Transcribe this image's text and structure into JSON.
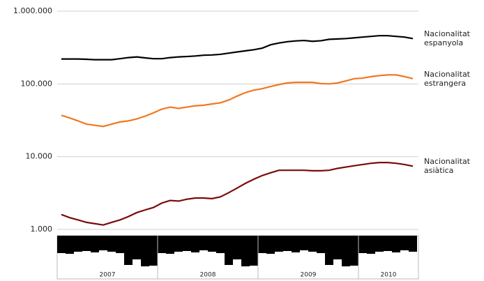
{
  "chart_data": {
    "type": "line",
    "log_scale": true,
    "grid": true,
    "categories": [
      null,
      null,
      null,
      null,
      null,
      null,
      null,
      null,
      null,
      null,
      null,
      null,
      null,
      null,
      null,
      null,
      null,
      null,
      null,
      null,
      null,
      null,
      null,
      null,
      null,
      null,
      null,
      null,
      null,
      null,
      null,
      null,
      null,
      null,
      null,
      null,
      null,
      null,
      null,
      null,
      null,
      null,
      null
    ],
    "ylim": [
      1000,
      1000000
    ],
    "yticks": [
      {
        "value": 1000,
        "label": "1.000"
      },
      {
        "value": 10000,
        "label": "10.000"
      },
      {
        "value": 100000,
        "label": "100.000"
      },
      {
        "value": 1000000,
        "label": "1.000.000"
      }
    ],
    "series": [
      {
        "name": "Nacionalitat espanyola",
        "color": "#000000",
        "values": [
          220000,
          220000,
          220000,
          218000,
          215000,
          215000,
          215000,
          222000,
          230000,
          235000,
          228000,
          222000,
          222000,
          230000,
          235000,
          238000,
          242000,
          248000,
          250000,
          255000,
          265000,
          275000,
          285000,
          295000,
          310000,
          345000,
          365000,
          380000,
          390000,
          395000,
          385000,
          392000,
          410000,
          415000,
          420000,
          430000,
          440000,
          450000,
          460000,
          460000,
          450000,
          440000,
          420000
        ]
      },
      {
        "name": "Nacionalitat estrangera",
        "color": "#f07820",
        "values": [
          37000,
          34000,
          31000,
          28000,
          27000,
          26000,
          28000,
          30000,
          31000,
          33000,
          36000,
          40000,
          45000,
          48000,
          46000,
          48000,
          50000,
          51000,
          53000,
          55000,
          60000,
          68000,
          76000,
          82000,
          86000,
          92000,
          98000,
          103000,
          105000,
          105000,
          105000,
          101000,
          100000,
          103000,
          110000,
          118000,
          120000,
          126000,
          130000,
          133000,
          133000,
          126000,
          118000
        ]
      },
      {
        "name": "Nacionalitat asiàtica",
        "color": "#7a0a0a",
        "values": [
          1600,
          1450,
          1350,
          1250,
          1200,
          1150,
          1250,
          1350,
          1500,
          1700,
          1850,
          2000,
          2300,
          2500,
          2450,
          2600,
          2700,
          2700,
          2650,
          2800,
          3200,
          3700,
          4300,
          4900,
          5500,
          6000,
          6500,
          6500,
          6500,
          6500,
          6400,
          6400,
          6500,
          6900,
          7200,
          7500,
          7800,
          8100,
          8300,
          8300,
          8100,
          7800,
          7400
        ]
      }
    ],
    "strip": {
      "color": "#000000",
      "lim": [
        0,
        50
      ],
      "values": [
        25,
        26,
        23,
        22,
        24,
        21,
        23,
        25,
        42,
        34,
        44,
        43,
        25,
        26,
        23,
        22,
        24,
        21,
        23,
        25,
        42,
        34,
        44,
        43,
        25,
        26,
        23,
        22,
        24,
        21,
        23,
        25,
        42,
        34,
        44,
        43,
        25,
        26,
        23,
        22,
        24,
        21,
        23
      ],
      "year_labels": [
        "2007",
        "2008",
        "2009",
        "2010"
      ]
    }
  }
}
